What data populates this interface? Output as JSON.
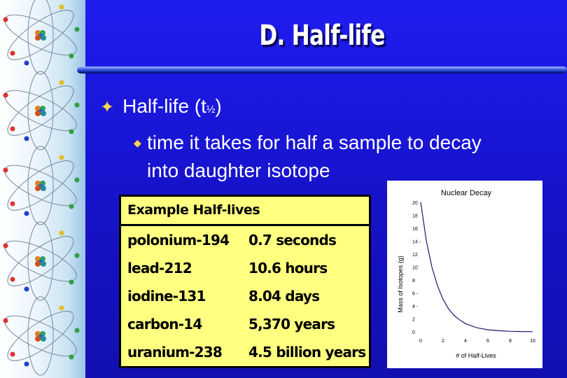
{
  "slide": {
    "title": "D. Half-life",
    "bullet1": {
      "text": "Half-life (t",
      "subscript": "½",
      "close": ")"
    },
    "bullet2": {
      "text": "time it takes for half a sample to decay into daughter isotope"
    }
  },
  "table": {
    "header": "Example Half-lives",
    "rows": [
      {
        "isotope": "polonium-194",
        "half_life": "0.7 seconds"
      },
      {
        "isotope": "lead-212",
        "half_life": "10.6 hours"
      },
      {
        "isotope": "iodine-131",
        "half_life": "8.04 days"
      },
      {
        "isotope": "carbon-14",
        "half_life": "5,370 years"
      },
      {
        "isotope": "uranium-238",
        "half_life": "4.5 billion years"
      }
    ]
  },
  "icons": {
    "bullet1": "four-point-star-icon",
    "bullet2": "diamond-bullet-icon",
    "decor": "atom-icon"
  },
  "colors": {
    "background": "#1f1cf0",
    "table_fill": "#ffff80",
    "bullet_mark": "#ffd84a",
    "curve": "#1a1a6e"
  },
  "chart_data": {
    "type": "line",
    "title": "Nuclear Decay",
    "xlabel": "# of Half-Lives",
    "ylabel": "Mass of Isotopes (g)",
    "xlim": [
      0,
      10
    ],
    "ylim": [
      0,
      20
    ],
    "x_ticks": [
      "0",
      "2",
      "4",
      "6",
      "8",
      "10"
    ],
    "y_ticks": [
      "0",
      "2",
      "4 -",
      "6 -",
      "8",
      "10",
      "12",
      "14 -",
      "16",
      "18",
      "20"
    ],
    "grid": false,
    "series": [
      {
        "x": [
          0,
          0.5,
          1,
          1.5,
          2,
          2.5,
          3,
          3.5,
          4,
          5,
          6,
          7,
          8,
          9,
          10
        ],
        "y": [
          20,
          14.1,
          10,
          7.1,
          5,
          3.5,
          2.5,
          1.8,
          1.25,
          0.63,
          0.31,
          0.16,
          0.08,
          0.04,
          0.02
        ]
      }
    ]
  }
}
